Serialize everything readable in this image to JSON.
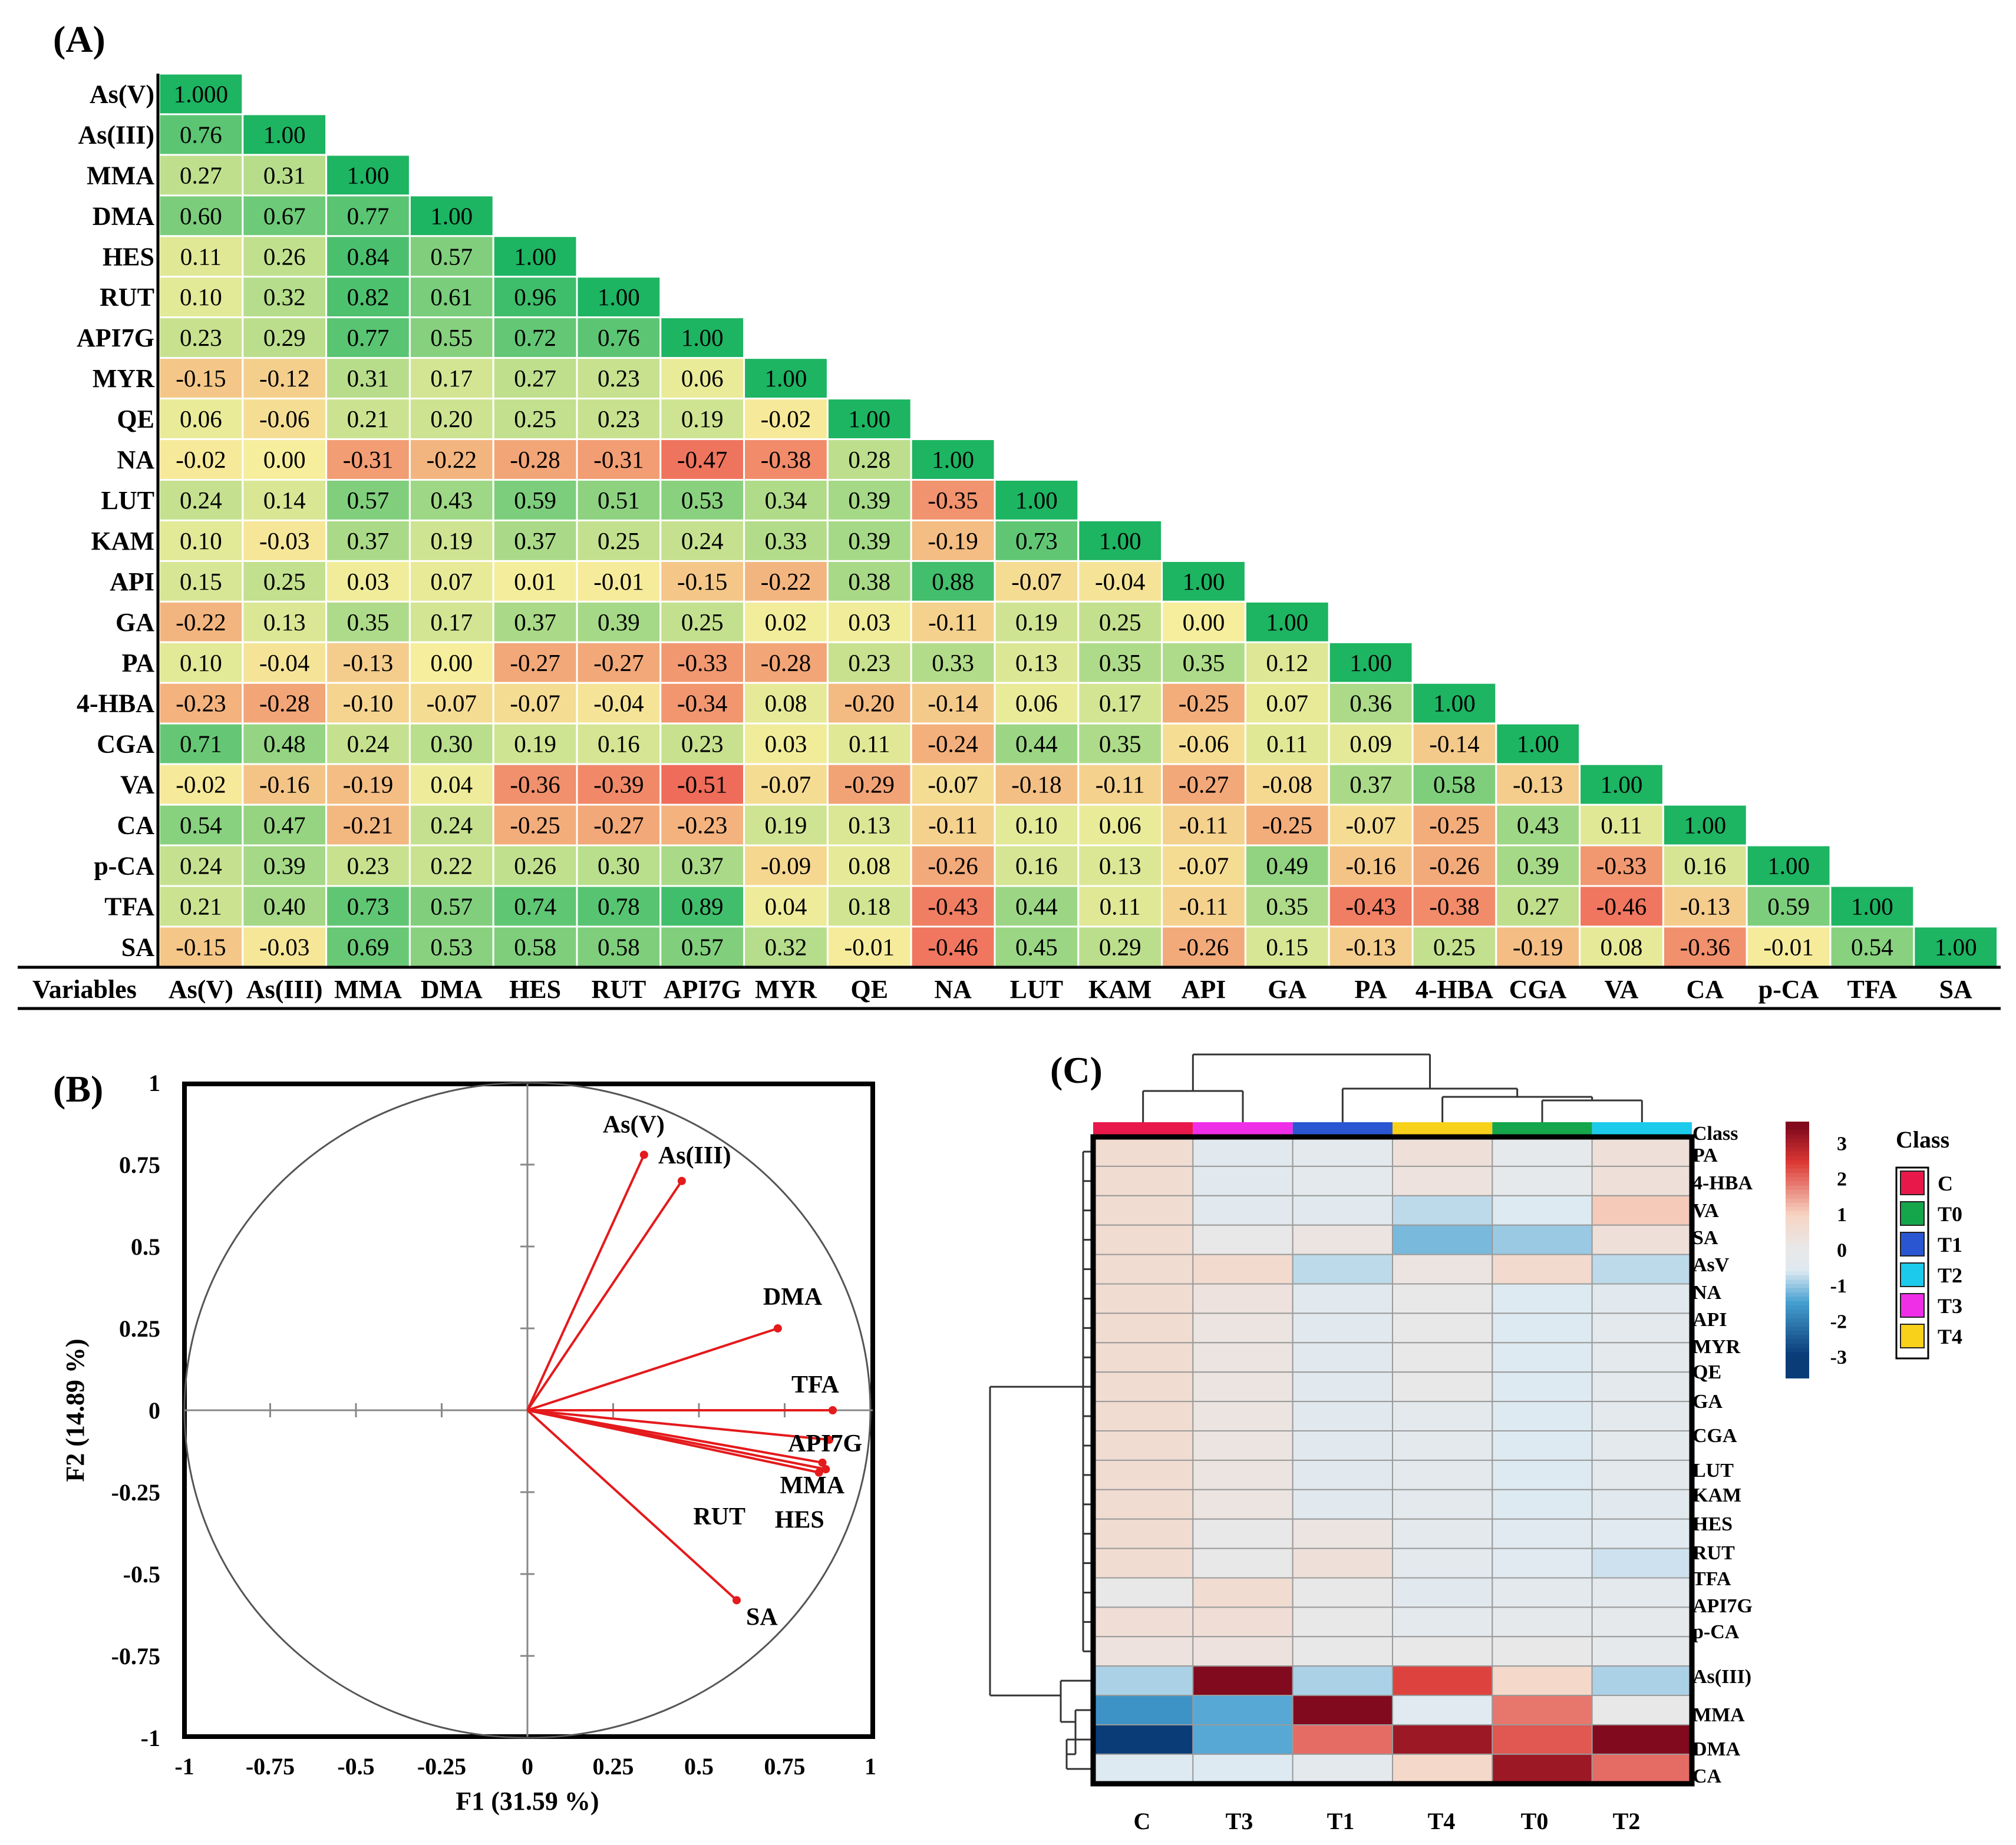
{
  "chart_data": [
    {
      "type": "heatmap",
      "panel_label": "(A)",
      "corner_label": "Variables",
      "variables": [
        "As(V)",
        "As(III)",
        "MMA",
        "DMA",
        "HES",
        "RUT",
        "API7G",
        "MYR",
        "QE",
        "NA",
        "LUT",
        "KAM",
        "API",
        "GA",
        "PA",
        "4-HBA",
        "CGA",
        "VA",
        "CA",
        "p-CA",
        "TFA",
        "SA"
      ],
      "matrix": [
        [
          "1.000"
        ],
        [
          "0.76",
          "1.00"
        ],
        [
          "0.27",
          "0.31",
          "1.00"
        ],
        [
          "0.60",
          "0.67",
          "0.77",
          "1.00"
        ],
        [
          "0.11",
          "0.26",
          "0.84",
          "0.57",
          "1.00"
        ],
        [
          "0.10",
          "0.32",
          "0.82",
          "0.61",
          "0.96",
          "1.00"
        ],
        [
          "0.23",
          "0.29",
          "0.77",
          "0.55",
          "0.72",
          "0.76",
          "1.00"
        ],
        [
          "-0.15",
          "-0.12",
          "0.31",
          "0.17",
          "0.27",
          "0.23",
          "0.06",
          "1.00"
        ],
        [
          "0.06",
          "-0.06",
          "0.21",
          "0.20",
          "0.25",
          "0.23",
          "0.19",
          "-0.02",
          "1.00"
        ],
        [
          "-0.02",
          "0.00",
          "-0.31",
          "-0.22",
          "-0.28",
          "-0.31",
          "-0.47",
          "-0.38",
          "0.28",
          "1.00"
        ],
        [
          "0.24",
          "0.14",
          "0.57",
          "0.43",
          "0.59",
          "0.51",
          "0.53",
          "0.34",
          "0.39",
          "-0.35",
          "1.00"
        ],
        [
          "0.10",
          "-0.03",
          "0.37",
          "0.19",
          "0.37",
          "0.25",
          "0.24",
          "0.33",
          "0.39",
          "-0.19",
          "0.73",
          "1.00"
        ],
        [
          "0.15",
          "0.25",
          "0.03",
          "0.07",
          "0.01",
          "-0.01",
          "-0.15",
          "-0.22",
          "0.38",
          "0.88",
          "-0.07",
          "-0.04",
          "1.00"
        ],
        [
          "-0.22",
          "0.13",
          "0.35",
          "0.17",
          "0.37",
          "0.39",
          "0.25",
          "0.02",
          "0.03",
          "-0.11",
          "0.19",
          "0.25",
          "0.00",
          "1.00"
        ],
        [
          "0.10",
          "-0.04",
          "-0.13",
          "0.00",
          "-0.27",
          "-0.27",
          "-0.33",
          "-0.28",
          "0.23",
          "0.33",
          "0.13",
          "0.35",
          "0.35",
          "0.12",
          "1.00"
        ],
        [
          "-0.23",
          "-0.28",
          "-0.10",
          "-0.07",
          "-0.07",
          "-0.04",
          "-0.34",
          "0.08",
          "-0.20",
          "-0.14",
          "0.06",
          "0.17",
          "-0.25",
          "0.07",
          "0.36",
          "1.00"
        ],
        [
          "0.71",
          "0.48",
          "0.24",
          "0.30",
          "0.19",
          "0.16",
          "0.23",
          "0.03",
          "0.11",
          "-0.24",
          "0.44",
          "0.35",
          "-0.06",
          "0.11",
          "0.09",
          "-0.14",
          "1.00"
        ],
        [
          "-0.02",
          "-0.16",
          "-0.19",
          "0.04",
          "-0.36",
          "-0.39",
          "-0.51",
          "-0.07",
          "-0.29",
          "-0.07",
          "-0.18",
          "-0.11",
          "-0.27",
          "-0.08",
          "0.37",
          "0.58",
          "-0.13",
          "1.00"
        ],
        [
          "0.54",
          "0.47",
          "-0.21",
          "0.24",
          "-0.25",
          "-0.27",
          "-0.23",
          "0.19",
          "0.13",
          "-0.11",
          "0.10",
          "0.06",
          "-0.11",
          "-0.25",
          "-0.07",
          "-0.25",
          "0.43",
          "0.11",
          "1.00"
        ],
        [
          "0.24",
          "0.39",
          "0.23",
          "0.22",
          "0.26",
          "0.30",
          "0.37",
          "-0.09",
          "0.08",
          "-0.26",
          "0.16",
          "0.13",
          "-0.07",
          "0.49",
          "-0.16",
          "-0.26",
          "0.39",
          "-0.33",
          "0.16",
          "1.00"
        ],
        [
          "0.21",
          "0.40",
          "0.73",
          "0.57",
          "0.74",
          "0.78",
          "0.89",
          "0.04",
          "0.18",
          "-0.43",
          "0.44",
          "0.11",
          "-0.11",
          "0.35",
          "-0.43",
          "-0.38",
          "0.27",
          "-0.46",
          "-0.13",
          "0.59",
          "1.00"
        ],
        [
          "-0.15",
          "-0.03",
          "0.69",
          "0.53",
          "0.58",
          "0.58",
          "0.57",
          "0.32",
          "-0.01",
          "-0.46",
          "0.45",
          "0.29",
          "-0.26",
          "0.15",
          "-0.13",
          "0.25",
          "-0.19",
          "0.08",
          "-0.36",
          "-0.01",
          "0.54",
          "1.00"
        ]
      ],
      "colors": {
        "strong_positive": "#1db462",
        "neutral": "#f6ee9c",
        "negative": "#ef6c5a"
      }
    },
    {
      "type": "scatter",
      "panel_label": "(B)",
      "title": "",
      "xlabel": "F1 (31.59 %)",
      "ylabel": "F2 (14.89 %)",
      "xlim": [
        -1,
        1
      ],
      "ylim": [
        -1,
        1
      ],
      "xticks": [
        "-1",
        "-0.75",
        "-0.5",
        "-0.25",
        "0",
        "0.25",
        "0.5",
        "0.75",
        "1"
      ],
      "yticks": [
        "1",
        "0.75",
        "0.5",
        "0.25",
        "0",
        "-0.25",
        "-0.5",
        "-0.75",
        "-1"
      ],
      "vectors": [
        {
          "name": "As(V)",
          "x": 0.34,
          "y": 0.78
        },
        {
          "name": "As(III)",
          "x": 0.45,
          "y": 0.7
        },
        {
          "name": "DMA",
          "x": 0.73,
          "y": 0.25
        },
        {
          "name": "TFA",
          "x": 0.89,
          "y": 0.0
        },
        {
          "name": "API7G",
          "x": 0.88,
          "y": -0.09
        },
        {
          "name": "MMA",
          "x": 0.86,
          "y": -0.16
        },
        {
          "name": "RUT",
          "x": 0.87,
          "y": -0.18
        },
        {
          "name": "HES",
          "x": 0.85,
          "y": -0.19
        },
        {
          "name": "SA",
          "x": 0.61,
          "y": -0.58
        }
      ],
      "vector_color": "#e41a1c"
    },
    {
      "type": "heatmap",
      "panel_label": "(C)",
      "columns": [
        "C",
        "T3",
        "T1",
        "T4",
        "T0",
        "T2"
      ],
      "column_class_colors": [
        "#e8184a",
        "#ef2ee8",
        "#2a56d2",
        "#f7d11a",
        "#15a54b",
        "#1ccbec"
      ],
      "rows": [
        "PA",
        "4-HBA",
        "VA",
        "SA",
        "AsV",
        "NA",
        "API",
        "MYR",
        "QE",
        "GA",
        "CGA",
        "LUT",
        "KAM",
        "HES",
        "RUT",
        "TFA",
        "API7G",
        "p-CA",
        "As(III)",
        "MMA",
        "DMA",
        "CA"
      ],
      "class_row_label": "Class",
      "values": [
        [
          0.6,
          -0.4,
          -0.3,
          0.4,
          -0.2,
          0.4
        ],
        [
          0.6,
          -0.4,
          -0.3,
          0.3,
          -0.2,
          0.4
        ],
        [
          0.6,
          -0.4,
          -0.4,
          -0.8,
          -0.6,
          1.1
        ],
        [
          0.6,
          0.0,
          0.2,
          -1.2,
          -1.0,
          0.4
        ],
        [
          0.6,
          0.7,
          -0.8,
          0.2,
          0.7,
          -0.8
        ],
        [
          0.6,
          0.3,
          -0.4,
          0.1,
          -0.6,
          -0.4
        ],
        [
          0.6,
          0.2,
          -0.4,
          0.1,
          -0.6,
          -0.3
        ],
        [
          0.6,
          0.2,
          -0.4,
          0.0,
          -0.6,
          -0.3
        ],
        [
          0.6,
          0.2,
          -0.4,
          0.0,
          -0.6,
          -0.3
        ],
        [
          0.6,
          0.2,
          -0.4,
          -0.3,
          -0.6,
          -0.3
        ],
        [
          0.6,
          0.2,
          -0.4,
          -0.3,
          -0.6,
          -0.3
        ],
        [
          0.6,
          0.2,
          -0.4,
          -0.3,
          -0.6,
          -0.3
        ],
        [
          0.6,
          0.2,
          -0.4,
          -0.3,
          -0.6,
          -0.4
        ],
        [
          0.6,
          0.0,
          0.2,
          -0.3,
          -0.5,
          -0.5
        ],
        [
          0.6,
          0.0,
          0.4,
          -0.3,
          -0.5,
          -0.7
        ],
        [
          0.0,
          0.6,
          0.0,
          -0.4,
          -0.3,
          -0.3
        ],
        [
          0.5,
          0.5,
          -0.1,
          -0.3,
          -0.2,
          -0.2
        ],
        [
          0.3,
          0.3,
          0.0,
          -0.1,
          -0.1,
          -0.2
        ],
        [
          -0.9,
          3.5,
          -0.9,
          2.4,
          0.8,
          -0.9
        ],
        [
          -1.7,
          -1.4,
          3.5,
          -0.5,
          1.9,
          -0.1
        ],
        [
          -3.0,
          -1.4,
          2.0,
          3.2,
          2.2,
          3.6
        ],
        [
          -0.6,
          -0.6,
          -0.3,
          0.8,
          3.2,
          2.0
        ]
      ],
      "colorbar": {
        "ticks": [
          "3",
          "2",
          "1",
          "0",
          "-1",
          "-2",
          "-3"
        ],
        "range": [
          -3,
          3
        ]
      },
      "legend": {
        "title": "Class",
        "items": [
          {
            "label": "C",
            "color": "#e8184a"
          },
          {
            "label": "T0",
            "color": "#15a54b"
          },
          {
            "label": "T1",
            "color": "#2a56d2"
          },
          {
            "label": "T2",
            "color": "#1ccbec"
          },
          {
            "label": "T3",
            "color": "#ef2ee8"
          },
          {
            "label": "T4",
            "color": "#f7d11a"
          }
        ]
      }
    }
  ]
}
